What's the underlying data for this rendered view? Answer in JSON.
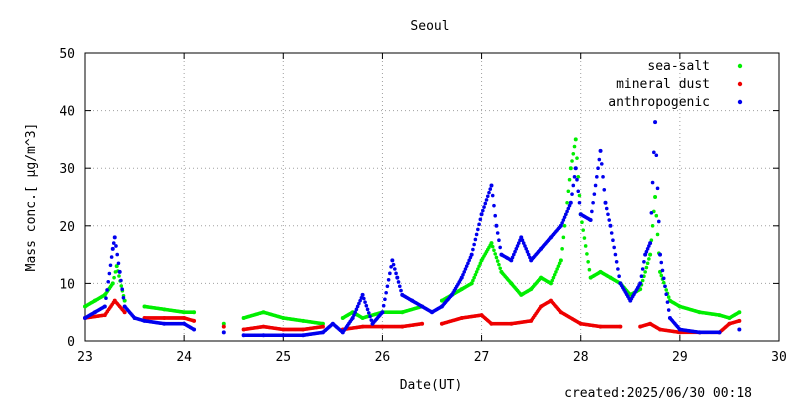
{
  "chart_data": {
    "type": "scatter",
    "title": "Seoul",
    "xlabel": "Date(UT)",
    "ylabel": "Mass conc.[ μg/m^3]",
    "footer": "created:2025/06/30 00:18",
    "xlim": [
      23,
      30
    ],
    "ylim": [
      0,
      50
    ],
    "xticks": [
      "23",
      "24",
      "25",
      "26",
      "27",
      "28",
      "29",
      "30"
    ],
    "yticks": [
      "0",
      "10",
      "20",
      "30",
      "40",
      "50"
    ],
    "grid": true,
    "legend_position": "top-right",
    "series": [
      {
        "name": "sea-salt",
        "color": "#00ee00",
        "points": [
          [
            23.0,
            6
          ],
          [
            23.1,
            7
          ],
          [
            23.2,
            8
          ],
          [
            23.28,
            10
          ],
          [
            23.32,
            13
          ],
          [
            23.4,
            7
          ],
          [
            23.6,
            6
          ],
          [
            23.8,
            5.5
          ],
          [
            24.0,
            5
          ],
          [
            24.1,
            5
          ],
          [
            24.4,
            3
          ],
          [
            24.6,
            4
          ],
          [
            24.8,
            5
          ],
          [
            25.0,
            4
          ],
          [
            25.2,
            3.5
          ],
          [
            25.4,
            3
          ],
          [
            25.6,
            4
          ],
          [
            25.7,
            5
          ],
          [
            25.8,
            4
          ],
          [
            26.0,
            5
          ],
          [
            26.2,
            5
          ],
          [
            26.4,
            6
          ],
          [
            26.6,
            7
          ],
          [
            26.8,
            9
          ],
          [
            26.9,
            10
          ],
          [
            27.0,
            14
          ],
          [
            27.1,
            17
          ],
          [
            27.2,
            12
          ],
          [
            27.3,
            10
          ],
          [
            27.4,
            8
          ],
          [
            27.5,
            9
          ],
          [
            27.6,
            11
          ],
          [
            27.7,
            10
          ],
          [
            27.8,
            14
          ],
          [
            27.9,
            30
          ],
          [
            27.95,
            35
          ],
          [
            28.0,
            22
          ],
          [
            28.1,
            11
          ],
          [
            28.2,
            12
          ],
          [
            28.3,
            11
          ],
          [
            28.4,
            10
          ],
          [
            28.5,
            8
          ],
          [
            28.6,
            9
          ],
          [
            28.7,
            15
          ],
          [
            28.75,
            25
          ],
          [
            28.8,
            12
          ],
          [
            28.9,
            7
          ],
          [
            29.0,
            6
          ],
          [
            29.2,
            5
          ],
          [
            29.4,
            4.5
          ],
          [
            29.5,
            4
          ],
          [
            29.6,
            5
          ]
        ]
      },
      {
        "name": "mineral dust",
        "color": "#ee0000",
        "points": [
          [
            23.0,
            4
          ],
          [
            23.2,
            4.5
          ],
          [
            23.3,
            7
          ],
          [
            23.4,
            5
          ],
          [
            23.6,
            4
          ],
          [
            23.8,
            4
          ],
          [
            24.0,
            4
          ],
          [
            24.1,
            3.5
          ],
          [
            24.4,
            2.5
          ],
          [
            24.6,
            2
          ],
          [
            24.8,
            2.5
          ],
          [
            25.0,
            2
          ],
          [
            25.2,
            2
          ],
          [
            25.4,
            2.5
          ],
          [
            25.6,
            2
          ],
          [
            25.8,
            2.5
          ],
          [
            26.0,
            2.5
          ],
          [
            26.2,
            2.5
          ],
          [
            26.4,
            3
          ],
          [
            26.6,
            3
          ],
          [
            26.8,
            4
          ],
          [
            27.0,
            4.5
          ],
          [
            27.1,
            3
          ],
          [
            27.3,
            3
          ],
          [
            27.5,
            3.5
          ],
          [
            27.6,
            6
          ],
          [
            27.7,
            7
          ],
          [
            27.8,
            5
          ],
          [
            28.0,
            3
          ],
          [
            28.2,
            2.5
          ],
          [
            28.4,
            2.5
          ],
          [
            28.6,
            2.5
          ],
          [
            28.7,
            3
          ],
          [
            28.8,
            2
          ],
          [
            29.0,
            1.5
          ],
          [
            29.2,
            1.5
          ],
          [
            29.4,
            1.5
          ],
          [
            29.5,
            3
          ],
          [
            29.6,
            3.5
          ]
        ]
      },
      {
        "name": "anthropogenic",
        "color": "#0000ee",
        "points": [
          [
            23.0,
            4
          ],
          [
            23.1,
            5
          ],
          [
            23.2,
            6
          ],
          [
            23.28,
            16
          ],
          [
            23.3,
            18
          ],
          [
            23.35,
            12
          ],
          [
            23.4,
            6
          ],
          [
            23.5,
            4
          ],
          [
            23.6,
            3.5
          ],
          [
            23.8,
            3
          ],
          [
            24.0,
            3
          ],
          [
            24.1,
            2
          ],
          [
            24.4,
            1.5
          ],
          [
            24.6,
            1
          ],
          [
            24.8,
            1
          ],
          [
            25.0,
            1
          ],
          [
            25.2,
            1
          ],
          [
            25.4,
            1.5
          ],
          [
            25.5,
            3
          ],
          [
            25.6,
            1.5
          ],
          [
            25.7,
            4
          ],
          [
            25.8,
            8
          ],
          [
            25.9,
            3
          ],
          [
            26.0,
            5
          ],
          [
            26.1,
            14
          ],
          [
            26.15,
            11
          ],
          [
            26.2,
            8
          ],
          [
            26.3,
            7
          ],
          [
            26.4,
            6
          ],
          [
            26.5,
            5
          ],
          [
            26.6,
            6
          ],
          [
            26.7,
            8
          ],
          [
            26.8,
            11
          ],
          [
            26.9,
            15
          ],
          [
            27.0,
            22
          ],
          [
            27.1,
            27
          ],
          [
            27.15,
            20
          ],
          [
            27.2,
            15
          ],
          [
            27.3,
            14
          ],
          [
            27.4,
            18
          ],
          [
            27.5,
            14
          ],
          [
            27.6,
            16
          ],
          [
            27.7,
            18
          ],
          [
            27.8,
            20
          ],
          [
            27.9,
            24
          ],
          [
            27.95,
            30
          ],
          [
            28.0,
            22
          ],
          [
            28.1,
            21
          ],
          [
            28.2,
            33
          ],
          [
            28.25,
            24
          ],
          [
            28.3,
            20
          ],
          [
            28.4,
            10
          ],
          [
            28.5,
            7
          ],
          [
            28.6,
            10
          ],
          [
            28.65,
            15
          ],
          [
            28.7,
            17
          ],
          [
            28.75,
            38
          ],
          [
            28.8,
            15
          ],
          [
            28.9,
            4
          ],
          [
            29.0,
            2
          ],
          [
            29.2,
            1.5
          ],
          [
            29.4,
            1.5
          ],
          [
            29.6,
            2
          ]
        ]
      }
    ]
  }
}
